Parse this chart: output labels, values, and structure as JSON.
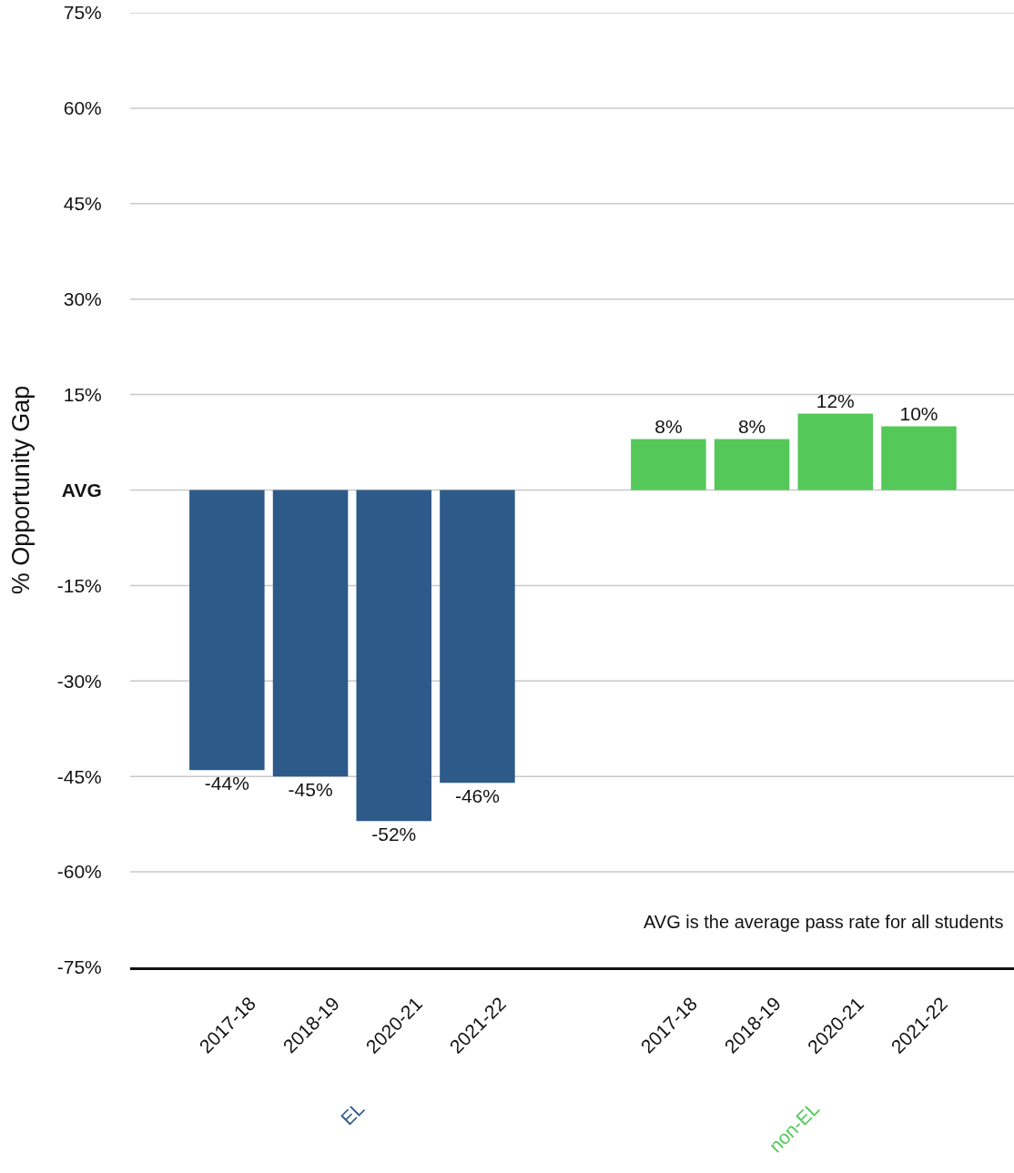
{
  "chart_data": {
    "type": "bar",
    "ylabel": "% Opportunity Gap",
    "categories": [
      "2017-18",
      "2018-19",
      "2020-21",
      "2021-22",
      "2017-18",
      "2018-19",
      "2020-21",
      "2021-22"
    ],
    "series": [
      {
        "name": "EL",
        "color": "#2e5a8a",
        "values": [
          -44,
          -45,
          -52,
          -46,
          null,
          null,
          null,
          null
        ],
        "value_labels": [
          "-44%",
          "-45%",
          "-52%",
          "-46%",
          null,
          null,
          null,
          null
        ]
      },
      {
        "name": "non-EL",
        "color": "#55c85a",
        "values": [
          null,
          null,
          null,
          null,
          8,
          8,
          12,
          10
        ],
        "value_labels": [
          null,
          null,
          null,
          null,
          "8%",
          "8%",
          "12%",
          "10%"
        ]
      }
    ],
    "ylim": [
      -75,
      75
    ],
    "yticks": [
      {
        "value": -75,
        "label": "-75%"
      },
      {
        "value": -60,
        "label": "-60%"
      },
      {
        "value": -45,
        "label": "-45%"
      },
      {
        "value": -30,
        "label": "-30%"
      },
      {
        "value": -15,
        "label": "-15%"
      },
      {
        "value": 0,
        "label": "AVG"
      },
      {
        "value": 15,
        "label": "15%"
      },
      {
        "value": 30,
        "label": "30%"
      },
      {
        "value": 45,
        "label": "45%"
      },
      {
        "value": 60,
        "label": "60%"
      },
      {
        "value": 75,
        "label": "75%"
      }
    ],
    "grid": "y",
    "legend": false,
    "annotations": [
      "AVG is the average pass rate for all students"
    ]
  }
}
